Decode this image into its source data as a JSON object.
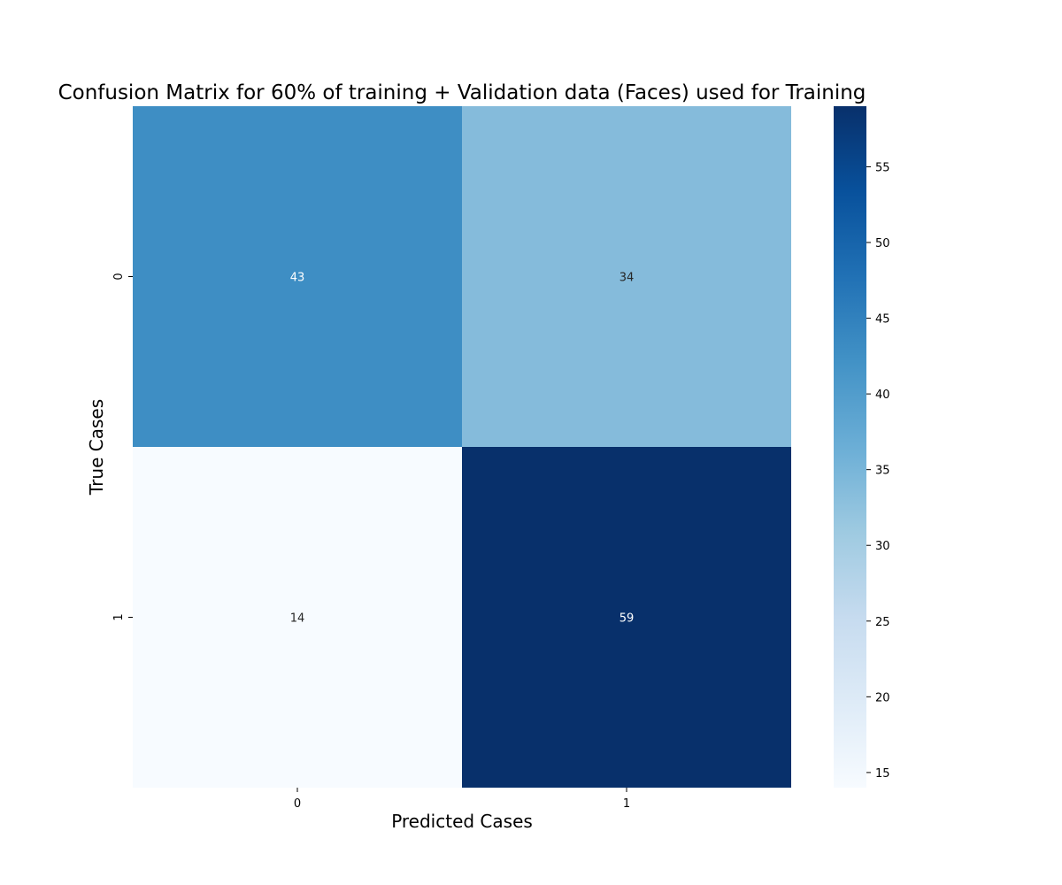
{
  "chart_data": {
    "type": "heatmap",
    "title": "Confusion Matrix for 60% of training + Validation data (Faces) used for Training",
    "xlabel": "Predicted Cases",
    "ylabel": "True Cases",
    "x_categories": [
      "0",
      "1"
    ],
    "y_categories": [
      "0",
      "1"
    ],
    "values": [
      [
        43,
        34
      ],
      [
        14,
        59
      ]
    ],
    "colormap": "Blues",
    "colorbar": {
      "range": [
        14,
        59
      ],
      "ticks": [
        15,
        20,
        25,
        30,
        35,
        40,
        45,
        50,
        55
      ],
      "tick_labels": [
        "15",
        "20",
        "25",
        "30",
        "35",
        "40",
        "45",
        "50",
        "55"
      ]
    },
    "colors": {
      "cell_0_0": "#3e8ec4",
      "cell_0_1": "#85bbdb",
      "cell_1_0": "#f7fbff",
      "cell_1_1": "#08306b"
    }
  }
}
